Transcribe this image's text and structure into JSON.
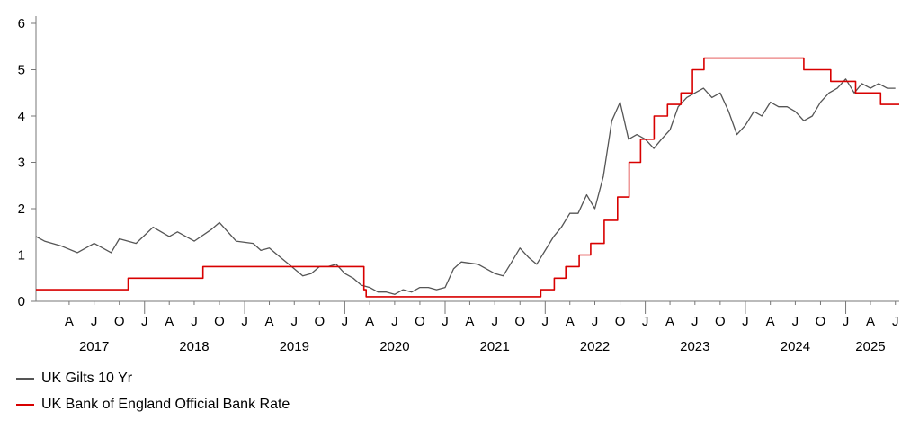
{
  "chart_data": {
    "type": "line",
    "title": "",
    "xlabel": "",
    "ylabel": "",
    "x_range": [
      "2016-12-01",
      "2025-07-15"
    ],
    "ylim": [
      0,
      6
    ],
    "y_ticks": [
      0,
      1,
      2,
      3,
      4,
      5,
      6
    ],
    "grid": false,
    "legend_position": "bottom-left",
    "month_ticks": [
      "2017-04-01",
      "2017-07-01",
      "2017-10-01",
      "2018-04-01",
      "2018-07-01",
      "2018-10-01",
      "2019-04-01",
      "2019-07-01",
      "2019-10-01",
      "2020-04-01",
      "2020-07-01",
      "2020-10-01",
      "2021-04-01",
      "2021-07-01",
      "2021-10-01",
      "2022-04-01",
      "2022-07-01",
      "2022-10-01",
      "2023-04-01",
      "2023-07-01",
      "2023-10-01",
      "2024-04-01",
      "2024-07-01",
      "2024-10-01",
      "2025-04-01",
      "2025-07-01"
    ],
    "month_labels": [
      "A",
      "J",
      "O",
      "A",
      "J",
      "O",
      "A",
      "J",
      "O",
      "A",
      "J",
      "O",
      "A",
      "J",
      "O",
      "A",
      "J",
      "O",
      "A",
      "J",
      "O",
      "A",
      "J",
      "O",
      "A",
      "J"
    ],
    "year_boundaries": [
      "2018-01-01",
      "2019-01-01",
      "2020-01-01",
      "2021-01-01",
      "2022-01-01",
      "2023-01-01",
      "2024-01-01",
      "2025-01-01"
    ],
    "year_boundary_labels": [
      "J",
      "J",
      "J",
      "J",
      "J",
      "J",
      "J",
      "J"
    ],
    "year_labels": [
      "2017",
      "2018",
      "2019",
      "2020",
      "2021",
      "2022",
      "2023",
      "2024",
      "2025"
    ],
    "year_label_positions": [
      "2017-07-01",
      "2018-07-01",
      "2019-07-01",
      "2020-07-01",
      "2021-07-01",
      "2022-07-01",
      "2023-07-01",
      "2024-07-01",
      "2025-04-01"
    ],
    "series": [
      {
        "name": "UK Gilts 10 Yr",
        "color": "#555555",
        "x": [
          "2016-12-01",
          "2017-01-01",
          "2017-03-01",
          "2017-05-01",
          "2017-07-01",
          "2017-09-01",
          "2017-10-01",
          "2017-12-01",
          "2018-02-01",
          "2018-04-01",
          "2018-05-01",
          "2018-07-01",
          "2018-09-01",
          "2018-10-01",
          "2018-12-01",
          "2019-02-01",
          "2019-03-01",
          "2019-04-01",
          "2019-05-01",
          "2019-06-01",
          "2019-07-01",
          "2019-08-01",
          "2019-09-01",
          "2019-10-01",
          "2019-11-01",
          "2019-12-01",
          "2020-01-01",
          "2020-02-01",
          "2020-03-01",
          "2020-04-01",
          "2020-05-01",
          "2020-06-01",
          "2020-07-01",
          "2020-08-01",
          "2020-09-01",
          "2020-10-01",
          "2020-11-01",
          "2020-12-01",
          "2021-01-01",
          "2021-02-01",
          "2021-03-01",
          "2021-05-01",
          "2021-07-01",
          "2021-08-01",
          "2021-09-01",
          "2021-10-01",
          "2021-11-01",
          "2021-12-01",
          "2022-01-01",
          "2022-02-01",
          "2022-03-01",
          "2022-04-01",
          "2022-05-01",
          "2022-06-01",
          "2022-07-01",
          "2022-08-01",
          "2022-09-01",
          "2022-10-01",
          "2022-11-01",
          "2022-12-01",
          "2023-01-01",
          "2023-02-01",
          "2023-03-01",
          "2023-04-01",
          "2023-05-01",
          "2023-06-01",
          "2023-07-01",
          "2023-08-01",
          "2023-09-01",
          "2023-10-01",
          "2023-11-01",
          "2023-12-01",
          "2024-01-01",
          "2024-02-01",
          "2024-03-01",
          "2024-04-01",
          "2024-05-01",
          "2024-06-01",
          "2024-07-01",
          "2024-08-01",
          "2024-09-01",
          "2024-10-01",
          "2024-11-01",
          "2024-12-01",
          "2025-01-01",
          "2025-02-01",
          "2025-03-01",
          "2025-04-01",
          "2025-05-01",
          "2025-06-01",
          "2025-07-01"
        ],
        "values": [
          1.4,
          1.3,
          1.2,
          1.05,
          1.25,
          1.05,
          1.35,
          1.25,
          1.6,
          1.4,
          1.5,
          1.3,
          1.55,
          1.7,
          1.3,
          1.25,
          1.1,
          1.15,
          1.0,
          0.85,
          0.7,
          0.55,
          0.6,
          0.75,
          0.75,
          0.8,
          0.6,
          0.5,
          0.35,
          0.3,
          0.2,
          0.2,
          0.15,
          0.25,
          0.2,
          0.3,
          0.3,
          0.25,
          0.3,
          0.7,
          0.85,
          0.8,
          0.6,
          0.55,
          0.85,
          1.15,
          0.95,
          0.8,
          1.1,
          1.4,
          1.6,
          1.9,
          1.9,
          2.3,
          2.0,
          2.7,
          3.9,
          4.3,
          3.5,
          3.6,
          3.5,
          3.3,
          3.5,
          3.7,
          4.2,
          4.4,
          4.5,
          4.6,
          4.4,
          4.5,
          4.1,
          3.6,
          3.8,
          4.1,
          4.0,
          4.3,
          4.2,
          4.2,
          4.1,
          3.9,
          4.0,
          4.3,
          4.5,
          4.6,
          4.8,
          4.5,
          4.7,
          4.6,
          4.7,
          4.6,
          4.6
        ]
      },
      {
        "name": "UK Bank of England Official Bank Rate",
        "color": "#d80000",
        "step": true,
        "x": [
          "2016-12-01",
          "2017-11-02",
          "2018-08-02",
          "2020-03-11",
          "2020-03-19",
          "2021-12-16",
          "2022-02-03",
          "2022-03-17",
          "2022-05-05",
          "2022-06-16",
          "2022-08-04",
          "2022-09-22",
          "2022-11-03",
          "2022-12-15",
          "2023-02-02",
          "2023-03-23",
          "2023-05-11",
          "2023-06-22",
          "2023-08-03",
          "2024-08-01",
          "2024-11-07",
          "2025-02-06",
          "2025-05-08",
          "2025-07-15"
        ],
        "values": [
          0.25,
          0.5,
          0.75,
          0.25,
          0.1,
          0.25,
          0.5,
          0.75,
          1.0,
          1.25,
          1.75,
          2.25,
          3.0,
          3.5,
          4.0,
          4.25,
          4.5,
          5.0,
          5.25,
          5.0,
          4.75,
          4.5,
          4.25,
          4.25
        ]
      }
    ]
  }
}
